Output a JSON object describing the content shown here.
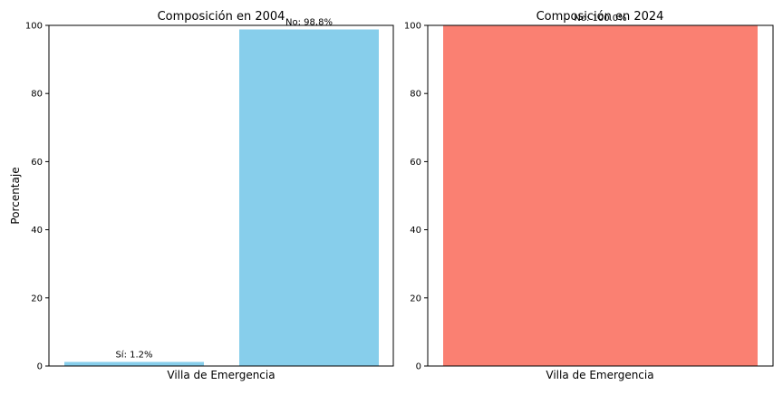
{
  "chart_data": [
    {
      "type": "bar",
      "title": "Composición en 2004",
      "xlabel": "Villa de Emergencia",
      "ylabel": "Porcentaje",
      "ylim": [
        0,
        100
      ],
      "yticks": [
        "0",
        "20",
        "40",
        "60",
        "80",
        "100"
      ],
      "bars": [
        {
          "label": "Sí: 1.2%",
          "value": 1.2,
          "color": "#87CEEB"
        },
        {
          "label": "No: 98.8%",
          "value": 98.8,
          "color": "#87CEEB"
        }
      ]
    },
    {
      "type": "bar",
      "title": "Composición en 2024",
      "xlabel": "Villa de Emergencia",
      "ylabel": "",
      "ylim": [
        0,
        100
      ],
      "yticks": [
        "0",
        "20",
        "40",
        "60",
        "80",
        "100"
      ],
      "bars": [
        {
          "label": "No: 100.0%",
          "value": 100.0,
          "color": "#FA8072"
        }
      ]
    }
  ]
}
